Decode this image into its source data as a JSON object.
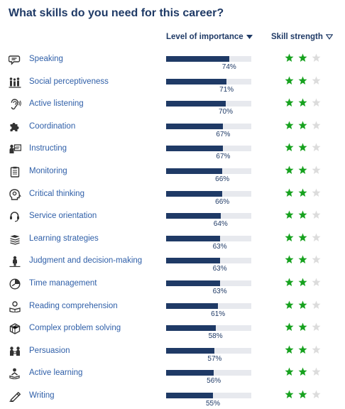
{
  "header": {
    "title": "What skills do you need for this career?",
    "importance_label": "Level of importance",
    "strength_label": "Skill strength"
  },
  "colors": {
    "navy": "#1f3a66",
    "link_blue": "#2f5fa8",
    "track": "#e7e9ee",
    "star_green": "#17a21f",
    "star_empty": "#dcdcdc"
  },
  "skills": [
    {
      "name": "Speaking",
      "icon": "speech-bubble-icon",
      "importance": 74,
      "pct_label": "74%",
      "stars": 2
    },
    {
      "name": "Social perceptiveness",
      "icon": "people-icon",
      "importance": 71,
      "pct_label": "71%",
      "stars": 2
    },
    {
      "name": "Active listening",
      "icon": "ear-icon",
      "importance": 70,
      "pct_label": "70%",
      "stars": 2
    },
    {
      "name": "Coordination",
      "icon": "puzzle-icon",
      "importance": 67,
      "pct_label": "67%",
      "stars": 2
    },
    {
      "name": "Instructing",
      "icon": "presenter-icon",
      "importance": 67,
      "pct_label": "67%",
      "stars": 2
    },
    {
      "name": "Monitoring",
      "icon": "clipboard-icon",
      "importance": 66,
      "pct_label": "66%",
      "stars": 2
    },
    {
      "name": "Critical thinking",
      "icon": "head-gear-icon",
      "importance": 66,
      "pct_label": "66%",
      "stars": 2
    },
    {
      "name": "Service orientation",
      "icon": "headset-icon",
      "importance": 64,
      "pct_label": "64%",
      "stars": 2
    },
    {
      "name": "Learning strategies",
      "icon": "books-icon",
      "importance": 63,
      "pct_label": "63%",
      "stars": 2
    },
    {
      "name": "Judgment and decision-making",
      "icon": "person-choice-icon",
      "importance": 63,
      "pct_label": "63%",
      "stars": 2
    },
    {
      "name": "Time management",
      "icon": "clock-icon",
      "importance": 63,
      "pct_label": "63%",
      "stars": 2
    },
    {
      "name": "Reading comprehension",
      "icon": "reader-icon",
      "importance": 61,
      "pct_label": "61%",
      "stars": 2
    },
    {
      "name": "Complex problem solving",
      "icon": "cube-icon",
      "importance": 58,
      "pct_label": "58%",
      "stars": 2
    },
    {
      "name": "Persuasion",
      "icon": "persuasion-icon",
      "importance": 57,
      "pct_label": "57%",
      "stars": 2
    },
    {
      "name": "Active learning",
      "icon": "learner-icon",
      "importance": 56,
      "pct_label": "56%",
      "stars": 2
    },
    {
      "name": "Writing",
      "icon": "pen-icon",
      "importance": 55,
      "pct_label": "55%",
      "stars": 2
    }
  ]
}
